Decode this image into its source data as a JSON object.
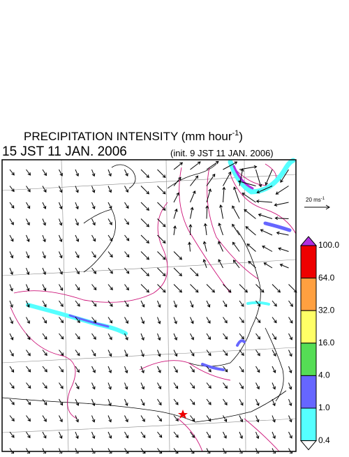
{
  "header": {
    "title": "PRECIPITATION INTENSITY (mm hour",
    "title_exponent": "-1",
    "title_end": ")",
    "valid_time": "15 JST 11 JAN. 2006",
    "init_time": "(init. 9 JST 11 JAN. 2006)"
  },
  "vector_scale": {
    "label": "20 ms",
    "exponent": "-1"
  },
  "colorbar": {
    "labels": [
      "100.0",
      "64.0",
      "32.0",
      "16.0",
      "4.0",
      "1.0",
      "0.4"
    ],
    "colors": [
      "#ee0000",
      "#ffa040",
      "#ffff66",
      "#55dd55",
      "#6666ff",
      "#55ffff"
    ],
    "over_color": "#b030e0",
    "under_color": "#ffffff"
  }
}
